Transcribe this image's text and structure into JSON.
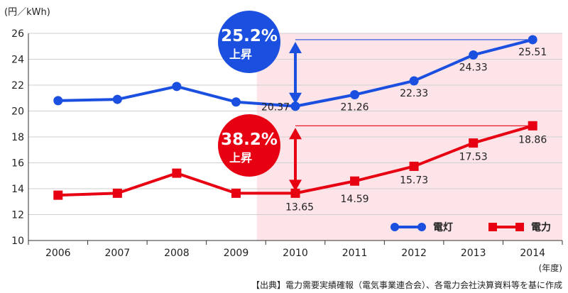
{
  "chart_data": {
    "type": "line",
    "title": "",
    "ylabel": "(円／kWh)",
    "xlabel": "(年度)",
    "ylim": [
      10,
      26
    ],
    "yticks": [
      10,
      12,
      14,
      16,
      18,
      20,
      22,
      24,
      26
    ],
    "x": [
      "2006",
      "2007",
      "2008",
      "2009",
      "2010",
      "2011",
      "2012",
      "2013",
      "2014"
    ],
    "series": [
      {
        "name": "電灯",
        "color": "#1a4fe0",
        "marker": "circle",
        "values": [
          20.8,
          20.9,
          21.9,
          20.7,
          20.37,
          21.26,
          22.33,
          24.33,
          25.51
        ],
        "labels": [
          "",
          "",
          "",
          "",
          "20.37",
          "21.26",
          "22.33",
          "24.33",
          "25.51"
        ]
      },
      {
        "name": "電力",
        "color": "#e60012",
        "marker": "square",
        "values": [
          13.5,
          13.65,
          15.2,
          13.65,
          13.65,
          14.59,
          15.73,
          17.53,
          18.86
        ],
        "labels": [
          "",
          "",
          "",
          "",
          "13.65",
          "14.59",
          "15.73",
          "17.53",
          "18.86"
        ]
      }
    ],
    "highlight_range": [
      "2010",
      "2014"
    ],
    "annotations": [
      {
        "text": "25.2%",
        "subtext": "上昇",
        "color": "#1a4fe0",
        "series": 0,
        "from": "2010",
        "to": "2014"
      },
      {
        "text": "38.2%",
        "subtext": "上昇",
        "color": "#e60012",
        "series": 1,
        "from": "2010",
        "to": "2014"
      }
    ],
    "legend_position": "bottom-right",
    "grid": true,
    "source": "【出典】電力需要実績確報（電気事業連合会）、各電力会社決算資料等を基に作成"
  }
}
